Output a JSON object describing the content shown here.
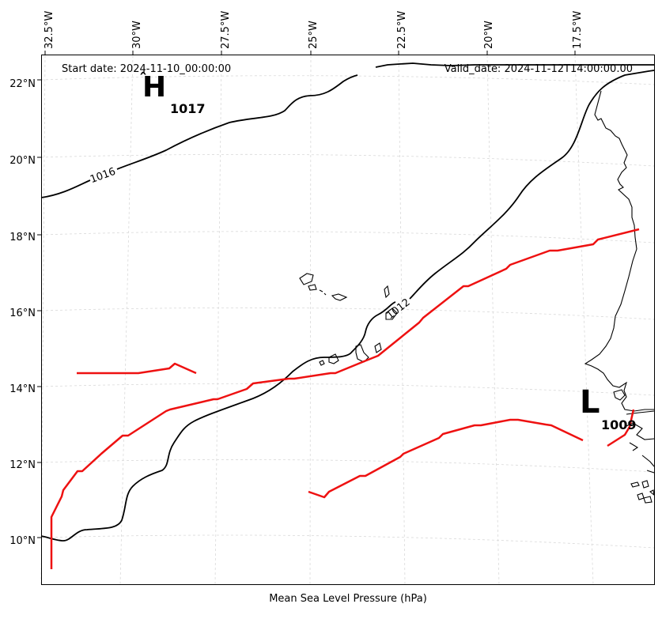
{
  "header": {
    "start_date": "Start date: 2024-11-10_00:00:00",
    "valid_date": "Valid_date: 2024-11-12T14:00:00.00"
  },
  "footer": {
    "xlabel": "Mean Sea Level Pressure (hPa)"
  },
  "axes": {
    "longitude_labels": [
      "32.5°W",
      "30°W",
      "27.5°W",
      "25°W",
      "22.5°W",
      "20°W",
      "17.5°W"
    ],
    "latitude_labels": [
      "22°N",
      "20°N",
      "18°N",
      "16°N",
      "14°N",
      "12°N",
      "10°N"
    ]
  },
  "pressure_centers": {
    "high": {
      "letter": "H",
      "value": "1017"
    },
    "low": {
      "letter": "L",
      "value": "1009"
    }
  },
  "isobars": {
    "label_1016": "1016",
    "label_1012": "1012"
  },
  "colors": {
    "isobar": "#000000",
    "trough_line": "#ee1111",
    "coastline": "#000000",
    "grid": "#d9d9d9"
  },
  "style": {
    "grid": true
  }
}
